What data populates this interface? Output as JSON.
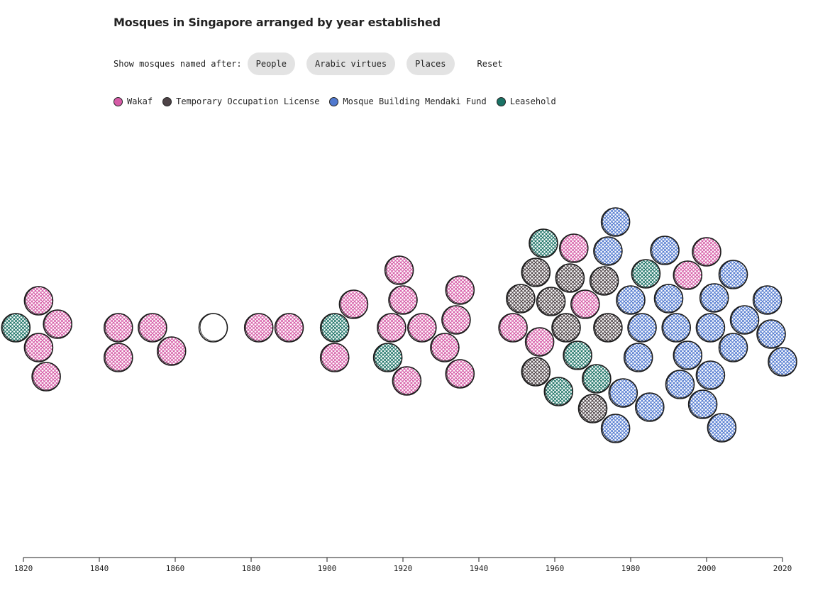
{
  "header": {
    "title": "Mosques in Singapore arranged by year established"
  },
  "filters": {
    "label": "Show mosques named after:",
    "buttons": [
      "People",
      "Arabic virtues",
      "Places"
    ],
    "reset_label": "Reset"
  },
  "legend": [
    {
      "label": "Wakaf",
      "color": "#d65ba6"
    },
    {
      "label": "Temporary Occupation License",
      "color": "#4e4347"
    },
    {
      "label": "Mosque Building Mendaki Fund",
      "color": "#5179cf"
    },
    {
      "label": "Leasehold",
      "color": "#1a7265"
    }
  ],
  "chart_data": {
    "type": "scatter",
    "title": "Mosques in Singapore arranged by year established",
    "xlabel": "",
    "ylabel": "",
    "xlim": [
      1820,
      2020
    ],
    "x_ticks": [
      1820,
      1840,
      1860,
      1880,
      1900,
      1920,
      1940,
      1960,
      1980,
      2000,
      2020
    ],
    "y_axis": "none (beeswarm layout)",
    "categories": [
      "Wakaf",
      "Temporary Occupation License",
      "Mosque Building Mendaki Fund",
      "Leasehold",
      "Unfilled"
    ],
    "colors": {
      "Wakaf": "#d65ba6",
      "Temporary Occupation License": "#4e4347",
      "Mosque Building Mendaki Fund": "#5179cf",
      "Leasehold": "#1a7265",
      "Unfilled": "none"
    },
    "points": [
      {
        "year": 1818,
        "category": "Leasehold"
      },
      {
        "year": 1824,
        "category": "Wakaf"
      },
      {
        "year": 1829,
        "category": "Wakaf"
      },
      {
        "year": 1824,
        "category": "Wakaf"
      },
      {
        "year": 1826,
        "category": "Wakaf"
      },
      {
        "year": 1845,
        "category": "Wakaf"
      },
      {
        "year": 1845,
        "category": "Wakaf"
      },
      {
        "year": 1854,
        "category": "Wakaf"
      },
      {
        "year": 1859,
        "category": "Wakaf"
      },
      {
        "year": 1870,
        "category": "Unfilled"
      },
      {
        "year": 1882,
        "category": "Wakaf"
      },
      {
        "year": 1890,
        "category": "Wakaf"
      },
      {
        "year": 1902,
        "category": "Leasehold"
      },
      {
        "year": 1902,
        "category": "Wakaf"
      },
      {
        "year": 1907,
        "category": "Wakaf"
      },
      {
        "year": 1917,
        "category": "Wakaf"
      },
      {
        "year": 1916,
        "category": "Leasehold"
      },
      {
        "year": 1925,
        "category": "Wakaf"
      },
      {
        "year": 1920,
        "category": "Wakaf"
      },
      {
        "year": 1921,
        "category": "Wakaf"
      },
      {
        "year": 1919,
        "category": "Wakaf"
      },
      {
        "year": 1931,
        "category": "Wakaf"
      },
      {
        "year": 1934,
        "category": "Wakaf"
      },
      {
        "year": 1935,
        "category": "Wakaf"
      },
      {
        "year": 1935,
        "category": "Wakaf"
      },
      {
        "year": 1949,
        "category": "Wakaf"
      },
      {
        "year": 1956,
        "category": "Wakaf"
      },
      {
        "year": 1963,
        "category": "Temporary Occupation License"
      },
      {
        "year": 1959,
        "category": "Temporary Occupation License"
      },
      {
        "year": 1955,
        "category": "Temporary Occupation License"
      },
      {
        "year": 1951,
        "category": "Temporary Occupation License"
      },
      {
        "year": 1955,
        "category": "Temporary Occupation License"
      },
      {
        "year": 1966,
        "category": "Leasehold"
      },
      {
        "year": 1961,
        "category": "Leasehold"
      },
      {
        "year": 1957,
        "category": "Leasehold"
      },
      {
        "year": 1968,
        "category": "Wakaf"
      },
      {
        "year": 1964,
        "category": "Temporary Occupation License"
      },
      {
        "year": 1965,
        "category": "Wakaf"
      },
      {
        "year": 1974,
        "category": "Temporary Occupation License"
      },
      {
        "year": 1971,
        "category": "Leasehold"
      },
      {
        "year": 1973,
        "category": "Temporary Occupation License"
      },
      {
        "year": 1970,
        "category": "Temporary Occupation License"
      },
      {
        "year": 1974,
        "category": "Mosque Building Mendaki Fund"
      },
      {
        "year": 1983,
        "category": "Mosque Building Mendaki Fund"
      },
      {
        "year": 1982,
        "category": "Mosque Building Mendaki Fund"
      },
      {
        "year": 1980,
        "category": "Mosque Building Mendaki Fund"
      },
      {
        "year": 1976,
        "category": "Mosque Building Mendaki Fund"
      },
      {
        "year": 1984,
        "category": "Leasehold"
      },
      {
        "year": 1978,
        "category": "Mosque Building Mendaki Fund"
      },
      {
        "year": 1976,
        "category": "Mosque Building Mendaki Fund"
      },
      {
        "year": 1985,
        "category": "Mosque Building Mendaki Fund"
      },
      {
        "year": 1992,
        "category": "Mosque Building Mendaki Fund"
      },
      {
        "year": 1995,
        "category": "Mosque Building Mendaki Fund"
      },
      {
        "year": 1990,
        "category": "Mosque Building Mendaki Fund"
      },
      {
        "year": 1993,
        "category": "Mosque Building Mendaki Fund"
      },
      {
        "year": 1989,
        "category": "Mosque Building Mendaki Fund"
      },
      {
        "year": 1995,
        "category": "Wakaf"
      },
      {
        "year": 2001,
        "category": "Mosque Building Mendaki Fund"
      },
      {
        "year": 1999,
        "category": "Mosque Building Mendaki Fund"
      },
      {
        "year": 2002,
        "category": "Mosque Building Mendaki Fund"
      },
      {
        "year": 2000,
        "category": "Wakaf"
      },
      {
        "year": 2001,
        "category": "Mosque Building Mendaki Fund"
      },
      {
        "year": 2007,
        "category": "Mosque Building Mendaki Fund"
      },
      {
        "year": 2004,
        "category": "Mosque Building Mendaki Fund"
      },
      {
        "year": 2010,
        "category": "Mosque Building Mendaki Fund"
      },
      {
        "year": 2007,
        "category": "Mosque Building Mendaki Fund"
      },
      {
        "year": 2017,
        "category": "Mosque Building Mendaki Fund"
      },
      {
        "year": 2016,
        "category": "Mosque Building Mendaki Fund"
      },
      {
        "year": 2020,
        "category": "Mosque Building Mendaki Fund"
      }
    ]
  }
}
